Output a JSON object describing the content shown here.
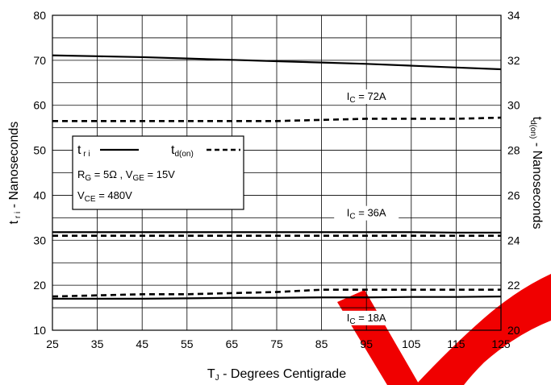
{
  "chart_data": {
    "type": "line",
    "x": [
      25,
      35,
      45,
      55,
      65,
      75,
      85,
      95,
      105,
      115,
      125
    ],
    "xlim": [
      25,
      125
    ],
    "ylim": [
      10,
      80
    ],
    "y2lim": [
      20,
      34
    ],
    "xticks": [
      "25",
      "35",
      "45",
      "55",
      "65",
      "75",
      "85",
      "95",
      "105",
      "115",
      "125"
    ],
    "yticks": [
      "10",
      "20",
      "30",
      "40",
      "50",
      "60",
      "70",
      "80"
    ],
    "y2ticks": [
      "20",
      "22",
      "24",
      "26",
      "28",
      "30",
      "32",
      "34"
    ],
    "xlabel": {
      "main": "T",
      "sub": "J",
      "rest": " - Degrees Centigrade"
    },
    "ylabel": {
      "main": "t",
      "sub": " r i",
      "rest": " - Nanoseconds"
    },
    "y2label": {
      "main": "t",
      "sub": "d(on)",
      "rest": " - Nanoseconds"
    },
    "grid": true,
    "series": [
      {
        "name": "t r i",
        "axis": "left",
        "style": "solid",
        "group": "IC = 72A",
        "values": [
          71.1,
          70.9,
          70.7,
          70.4,
          70.1,
          69.8,
          69.5,
          69.2,
          68.8,
          68.4,
          68.0
        ]
      },
      {
        "name": "td(on)",
        "axis": "right",
        "style": "dashed",
        "group": "IC = 72A",
        "values": [
          29.3,
          29.3,
          29.3,
          29.3,
          29.3,
          29.3,
          29.35,
          29.4,
          29.4,
          29.4,
          29.45
        ]
      },
      {
        "name": "t r i",
        "axis": "left",
        "style": "solid",
        "group": "IC = 36A",
        "values": [
          31.8,
          31.8,
          31.8,
          31.8,
          31.8,
          31.8,
          31.8,
          31.8,
          31.8,
          31.7,
          31.7
        ]
      },
      {
        "name": "td(on)",
        "axis": "right",
        "style": "dashed",
        "group": "IC = 36A",
        "values": [
          24.2,
          24.2,
          24.2,
          24.2,
          24.2,
          24.2,
          24.2,
          24.2,
          24.2,
          24.2,
          24.2
        ]
      },
      {
        "name": "t r i",
        "axis": "left",
        "style": "solid",
        "group": "IC = 18A",
        "values": [
          17.0,
          17.0,
          17.0,
          17.1,
          17.2,
          17.2,
          17.3,
          17.3,
          17.4,
          17.4,
          17.5
        ]
      },
      {
        "name": "td(on)",
        "axis": "right",
        "style": "dashed",
        "group": "IC = 18A",
        "values": [
          21.5,
          21.55,
          21.6,
          21.6,
          21.65,
          21.7,
          21.8,
          21.8,
          21.8,
          21.8,
          21.8
        ]
      }
    ],
    "annotations": [
      {
        "main": "I",
        "sub": "C",
        "rest": " = 72A",
        "x": 95,
        "y": 61.2
      },
      {
        "main": "I",
        "sub": "C",
        "rest": " = 36A",
        "x": 95,
        "y": 35.3
      },
      {
        "main": "I",
        "sub": "C",
        "rest": " = 18A",
        "x": 95,
        "y": 12.0
      }
    ],
    "legend": {
      "placement": "left",
      "entries": [
        {
          "main": "t",
          "sub": "r i",
          "style": "solid"
        },
        {
          "main": "t",
          "sub": "d(on)",
          "style": "dashed"
        }
      ],
      "lines": [
        {
          "parts": [
            {
              "t": "R",
              "sub": false
            },
            {
              "t": "G",
              "sub": true
            },
            {
              "t": " = 5Ω ,  V",
              "sub": false
            },
            {
              "t": "GE",
              "sub": true
            },
            {
              "t": " = 15V",
              "sub": false
            }
          ]
        },
        {
          "parts": [
            {
              "t": "V",
              "sub": false
            },
            {
              "t": "CE",
              "sub": true
            },
            {
              "t": " = 480V",
              "sub": false
            }
          ]
        }
      ]
    }
  }
}
